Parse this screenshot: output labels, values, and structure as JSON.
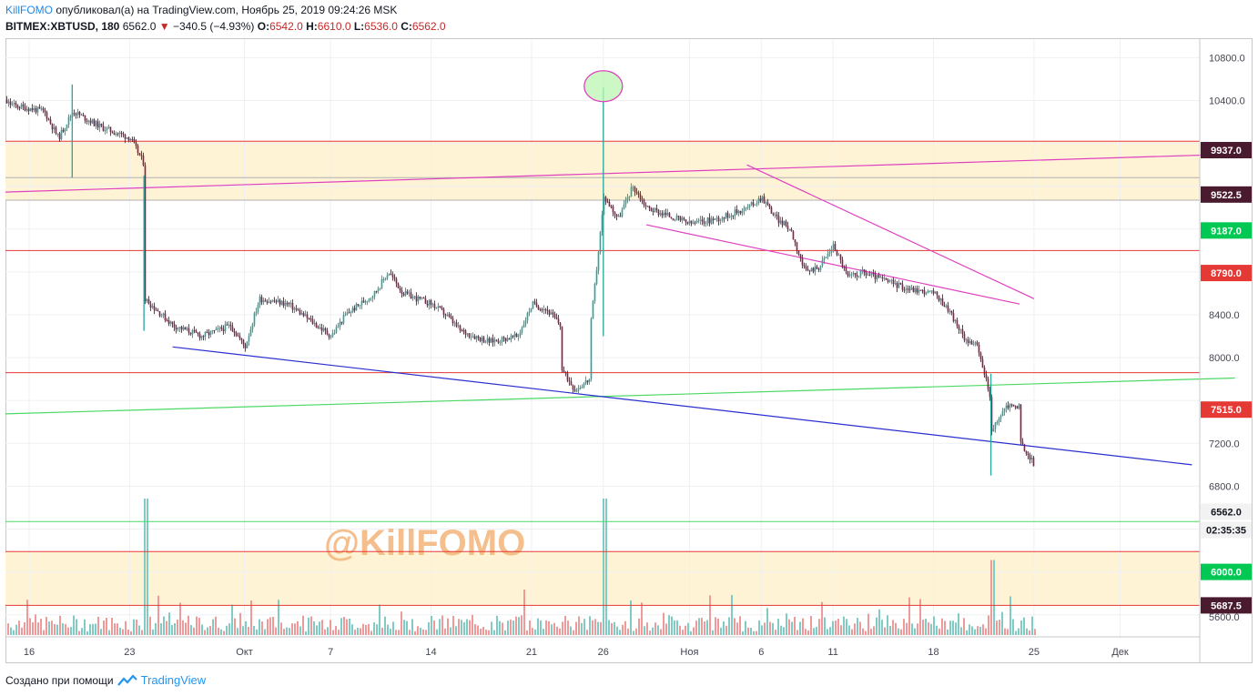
{
  "header": {
    "author": "KillFOMO",
    "published": "опубликовал(а) на TradingView.com, Ноябрь 25, 2019 09:24:26 MSK",
    "symbol": "BITMEX:XBTUSD, 180",
    "last": "6562.0",
    "change": "−340.5 (−4.93%)",
    "o_label": "O:",
    "o_value": "6542.0",
    "h_label": "H:",
    "h_value": "6610.0",
    "l_label": "L:",
    "l_value": "6536.0",
    "c_label": "C:",
    "c_value": "6562.0",
    "down_arrow": "▼"
  },
  "watermark": "@KillFOMO",
  "footer": {
    "created_with": "Создано при помощи",
    "brand": "TradingView"
  },
  "colors": {
    "up": "#26a69a",
    "down": "#8e1b4a",
    "vol_up": "#80cbc4",
    "vol_down": "#ef9a9a",
    "zone": "#fff3d6",
    "red_level": "#e53935",
    "green_level": "#4cd964",
    "magenta": "#e040c0",
    "blue": "#2a2fcf",
    "watermark": "#f3b57a",
    "badge_black": "#4a1b2e",
    "badge_green": "#00c853",
    "badge_red": "#e53935"
  },
  "chart_data": {
    "type": "candlestick",
    "y_axis_ticks": [
      "10800.0",
      "10400.0",
      "9937.0",
      "9522.5",
      "9187.0",
      "8790.0",
      "8400.0",
      "8000.0",
      "7515.0",
      "7200.0",
      "6800.0",
      "6562.0",
      "6000.0",
      "5687.5",
      "5600.0"
    ],
    "x_axis_ticks": [
      "16",
      "23",
      "Окт",
      "7",
      "14",
      "21",
      "26",
      "Ноя",
      "6",
      "11",
      "18",
      "25",
      "Дек"
    ],
    "price_badges": [
      {
        "label": "9937.0",
        "value": 9937.0,
        "style": "black"
      },
      {
        "label": "9522.5",
        "value": 9522.5,
        "style": "black"
      },
      {
        "label": "9187.0",
        "value": 9187.0,
        "style": "green"
      },
      {
        "label": "8790.0",
        "value": 8790.0,
        "style": "red"
      },
      {
        "label": "7515.0",
        "value": 7515.0,
        "style": "red"
      },
      {
        "label": "6562.0",
        "value": 6562.0,
        "style": "light"
      },
      {
        "label": "02:35:35",
        "value": 6562.0,
        "style": "countdown"
      },
      {
        "label": "6000.0",
        "value": 6000.0,
        "style": "green"
      },
      {
        "label": "5687.5",
        "value": 5687.5,
        "style": "black"
      }
    ],
    "zones": [
      {
        "from": 9470,
        "to": 10020
      },
      {
        "from": 5687.5,
        "to": 6190
      }
    ],
    "horizontal_levels": [
      {
        "value": 10020,
        "color": "red"
      },
      {
        "value": 9680,
        "color": "gray"
      },
      {
        "value": 9470,
        "color": "gray"
      },
      {
        "value": 9000,
        "color": "red"
      },
      {
        "value": 7860,
        "color": "red"
      },
      {
        "value": 6470,
        "color": "green"
      },
      {
        "value": 6190,
        "color": "red"
      },
      {
        "value": 5687.5,
        "color": "red"
      }
    ],
    "trendlines": [
      {
        "color": "magenta",
        "p1": [
          "2019-09-13",
          9540
        ],
        "p2": [
          "2019-12-09",
          9900
        ]
      },
      {
        "color": "green",
        "p1": [
          "2019-09-13",
          7470
        ],
        "p2": [
          "2019-12-09",
          7810
        ]
      },
      {
        "color": "blue",
        "p1": [
          "2019-09-26",
          8100
        ],
        "p2": [
          "2019-12-06",
          7000
        ]
      },
      {
        "color": "magenta",
        "p1": [
          "2019-10-29",
          9240
        ],
        "p2": [
          "2019-11-24",
          8500
        ]
      },
      {
        "color": "magenta",
        "p1": [
          "2019-11-05",
          9800
        ],
        "p2": [
          "2019-11-25",
          8550
        ]
      }
    ],
    "highlight_ellipse": {
      "date": "2019-10-26",
      "value": 10500
    },
    "price_path": [
      [
        "2019-09-13",
        10450
      ],
      [
        "2019-09-15",
        10350
      ],
      [
        "2019-09-17",
        10300
      ],
      [
        "2019-09-18",
        10050
      ],
      [
        "2019-09-19",
        10300
      ],
      [
        "2019-09-21",
        10150
      ],
      [
        "2019-09-23",
        10050
      ],
      [
        "2019-09-24",
        9800
      ],
      [
        "2019-09-24",
        8550
      ],
      [
        "2019-09-26",
        8300
      ],
      [
        "2019-09-28",
        8200
      ],
      [
        "2019-09-30",
        8300
      ],
      [
        "2019-10-01",
        8100
      ],
      [
        "2019-10-02",
        8550
      ],
      [
        "2019-10-04",
        8500
      ],
      [
        "2019-10-06",
        8300
      ],
      [
        "2019-10-07",
        8200
      ],
      [
        "2019-10-08",
        8400
      ],
      [
        "2019-10-10",
        8600
      ],
      [
        "2019-10-11",
        8800
      ],
      [
        "2019-10-12",
        8600
      ],
      [
        "2019-10-14",
        8500
      ],
      [
        "2019-10-15",
        8400
      ],
      [
        "2019-10-16",
        8250
      ],
      [
        "2019-10-17",
        8200
      ],
      [
        "2019-10-18",
        8150
      ],
      [
        "2019-10-20",
        8200
      ],
      [
        "2019-10-21",
        8500
      ],
      [
        "2019-10-22",
        8450
      ],
      [
        "2019-10-23",
        8300
      ],
      [
        "2019-10-23",
        7900
      ],
      [
        "2019-10-24",
        7700
      ],
      [
        "2019-10-25",
        7800
      ],
      [
        "2019-10-25",
        8200
      ],
      [
        "2019-10-26",
        9500
      ],
      [
        "2019-10-27",
        9300
      ],
      [
        "2019-10-28",
        9600
      ],
      [
        "2019-10-29",
        9400
      ],
      [
        "2019-10-30",
        9350
      ],
      [
        "2019-11-01",
        9250
      ],
      [
        "2019-11-03",
        9300
      ],
      [
        "2019-11-05",
        9400
      ],
      [
        "2019-11-06",
        9500
      ],
      [
        "2019-11-07",
        9300
      ],
      [
        "2019-11-08",
        9200
      ],
      [
        "2019-11-09",
        8800
      ],
      [
        "2019-11-10",
        8850
      ],
      [
        "2019-11-11",
        9050
      ],
      [
        "2019-11-12",
        8750
      ],
      [
        "2019-11-13",
        8800
      ],
      [
        "2019-11-15",
        8700
      ],
      [
        "2019-11-16",
        8650
      ],
      [
        "2019-11-18",
        8600
      ],
      [
        "2019-11-19",
        8450
      ],
      [
        "2019-11-20",
        8200
      ],
      [
        "2019-11-21",
        8100
      ],
      [
        "2019-11-22",
        7600
      ],
      [
        "2019-11-22",
        7300
      ],
      [
        "2019-11-23",
        7550
      ],
      [
        "2019-11-24",
        7550
      ],
      [
        "2019-11-24",
        7200
      ],
      [
        "2019-11-25",
        7000
      ]
    ],
    "wick_extremes": [
      {
        "date": "2019-09-19",
        "high": 10550,
        "low": 9680
      },
      {
        "date": "2019-09-24",
        "high": 9700,
        "low": 8250
      },
      {
        "date": "2019-10-26",
        "high": 10520,
        "low": 8200
      },
      {
        "date": "2019-11-22",
        "high": 7850,
        "low": 6900
      }
    ],
    "volume_spikes": [
      {
        "date": "2019-09-24",
        "relative": 1.0
      },
      {
        "date": "2019-10-26",
        "relative": 1.0
      },
      {
        "date": "2019-11-22",
        "relative": 0.55
      }
    ]
  }
}
